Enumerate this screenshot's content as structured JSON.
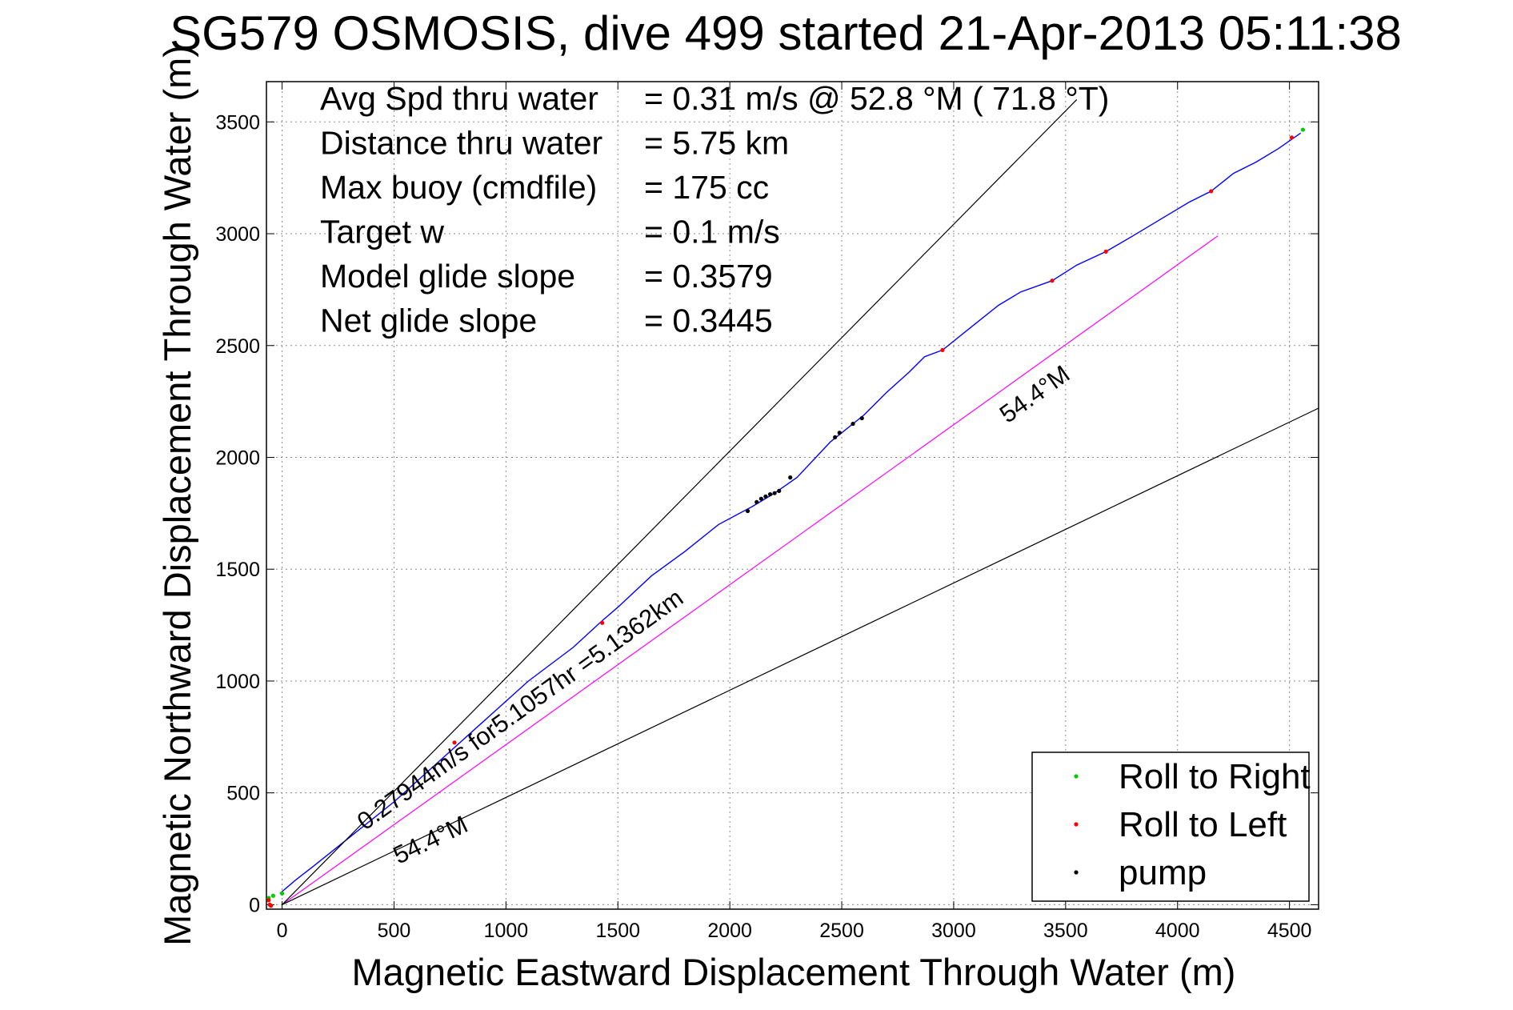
{
  "chart_data": {
    "type": "line",
    "title": "SG579 OSMOSIS, dive 499 started 21-Apr-2013 05:11:38",
    "xlabel": "Magnetic Eastward Displacement Through Water (m)",
    "ylabel": "Magnetic Northward Displacement Through Water (m)",
    "xlim": [
      -70,
      4630
    ],
    "ylim": [
      -20,
      3680
    ],
    "xticks": [
      0,
      500,
      1000,
      1500,
      2000,
      2500,
      3000,
      3500,
      4000,
      4500
    ],
    "yticks": [
      0,
      500,
      1000,
      1500,
      2000,
      2500,
      3000,
      3500
    ],
    "grid": true,
    "legend_position": "bottom-right",
    "stats": [
      {
        "label": "Avg Spd thru water",
        "value": "=  0.31 m/s @  52.8 °M ( 71.8 °T)"
      },
      {
        "label": "Distance thru water",
        "value": "=  5.75 km"
      },
      {
        "label": "Max buoy (cmdfile)",
        "value": "= 175 cc"
      },
      {
        "label": "Target w",
        "value": "= 0.1 m/s"
      },
      {
        "label": "Model glide slope",
        "value": "= 0.3579"
      },
      {
        "label": "Net glide slope",
        "value": "= 0.3445"
      }
    ],
    "series": [
      {
        "kind": "track",
        "color": "#0000ff",
        "x": [
          -10,
          60,
          150,
          300,
          500,
          700,
          900,
          1100,
          1300,
          1430,
          1500,
          1650,
          1800,
          1950,
          2100,
          2200,
          2300,
          2450,
          2600,
          2700,
          2800,
          2870,
          2950,
          3100,
          3200,
          3300,
          3440,
          3550,
          3680,
          3800,
          3950,
          4050,
          4150,
          4250,
          4350,
          4450,
          4550
        ],
        "y": [
          50,
          110,
          180,
          300,
          460,
          640,
          820,
          1000,
          1150,
          1270,
          1330,
          1470,
          1580,
          1700,
          1780,
          1840,
          1910,
          2070,
          2190,
          2290,
          2380,
          2450,
          2480,
          2600,
          2680,
          2740,
          2790,
          2860,
          2920,
          2990,
          3080,
          3140,
          3190,
          3270,
          3320,
          3380,
          3450
        ]
      },
      {
        "kind": "magnetic-heading",
        "color": "#ff00ff",
        "x": [
          0,
          4180
        ],
        "y": [
          0,
          2990
        ]
      },
      {
        "kind": "envelope",
        "color": "#000000",
        "x": [
          0,
          3550
        ],
        "y": [
          0,
          3600
        ]
      },
      {
        "kind": "envelope",
        "color": "#000000",
        "x": [
          0,
          4630
        ],
        "y": [
          0,
          2220
        ]
      },
      {
        "name": "Roll to Right",
        "kind": "markers",
        "color": "#00cc00",
        "x": [
          -60,
          -40,
          0,
          4560
        ],
        "y": [
          30,
          40,
          50,
          3465
        ]
      },
      {
        "name": "Roll to Left",
        "kind": "markers",
        "color": "#ff0000",
        "x": [
          -60,
          -55,
          -50,
          770,
          1430,
          2950,
          3440,
          3680,
          4150,
          4510
        ],
        "y": [
          20,
          0,
          -5,
          725,
          1260,
          2480,
          2790,
          2920,
          3190,
          3430
        ]
      },
      {
        "name": "pump",
        "kind": "markers",
        "color": "#000000",
        "x": [
          2080,
          2120,
          2140,
          2160,
          2180,
          2200,
          2220,
          2270,
          2470,
          2490,
          2550,
          2590
        ],
        "y": [
          1760,
          1800,
          1815,
          1825,
          1835,
          1840,
          1850,
          1910,
          2090,
          2110,
          2150,
          2175
        ]
      }
    ],
    "annotations": [
      {
        "text": "0.27944m/s for5.1057hr =5.1362km",
        "x": 370,
        "y": 330,
        "rotation": -35.6
      },
      {
        "text": "54.4°M",
        "x": 3240,
        "y": 2150,
        "rotation": -35.6
      },
      {
        "text": "54.4°M",
        "x": 520,
        "y": 180,
        "rotation": -25.6
      }
    ]
  }
}
